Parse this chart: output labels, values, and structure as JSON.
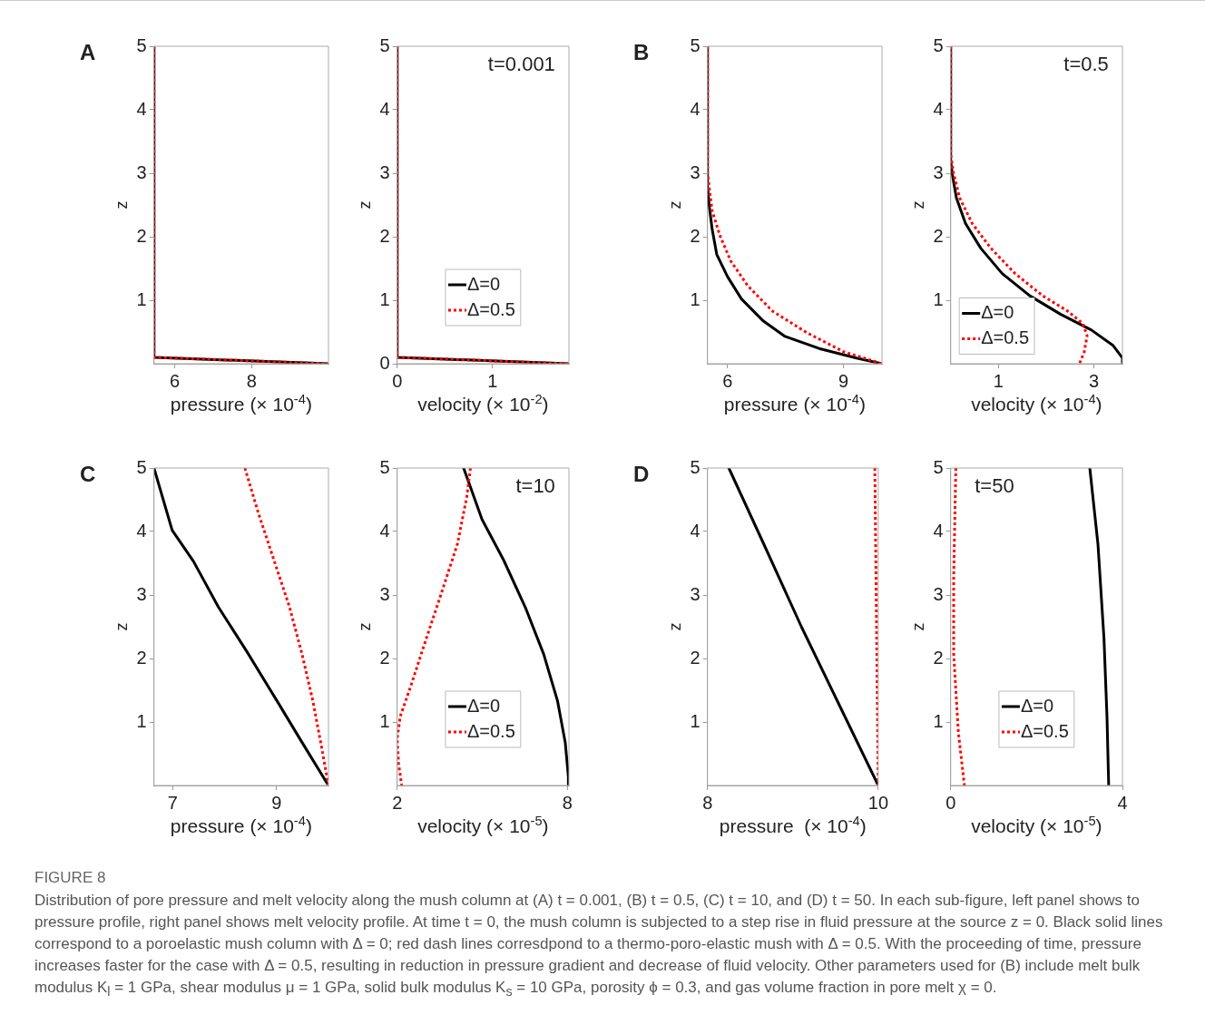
{
  "chart_data": [
    {
      "type": "line",
      "title": "A",
      "xlabel": "pressure (× 10$^{-4}$)",
      "ylabel": "z",
      "xlim": [
        5.46,
        10
      ],
      "xticks": [
        6,
        8
      ],
      "ylim": [
        0,
        5
      ],
      "yticks": [
        1,
        2,
        3,
        4,
        5
      ],
      "grid": false,
      "legend": false,
      "series": [
        {
          "color": "#000000",
          "line_style": "solid",
          "x": [
            5.46,
            5.46,
            10
          ],
          "values": [
            5,
            0.1,
            0
          ]
        },
        {
          "color": "#ff0000",
          "line_style": "dotted",
          "x": [
            5.46,
            5.46,
            10
          ],
          "values": [
            5,
            0.1,
            0
          ]
        }
      ]
    },
    {
      "type": "line",
      "xlabel": "velocity (× 10$^{-2}$)",
      "ylabel": "z",
      "xlim": [
        0,
        1.8
      ],
      "xticks": [
        0,
        1
      ],
      "ylim": [
        0,
        5
      ],
      "yticks": [
        0,
        1,
        2,
        3,
        4,
        5
      ],
      "grid": false,
      "legend": "bottom",
      "annotations": [
        "t=0.001"
      ],
      "series": [
        {
          "name": "Δ=0",
          "color": "#000000",
          "line_style": "solid",
          "x": [
            0,
            0,
            1.8
          ],
          "values": [
            5,
            0.1,
            0
          ]
        },
        {
          "name": "Δ=0.5",
          "color": "#ff0000",
          "line_style": "dotted",
          "x": [
            0,
            0,
            1.8
          ],
          "values": [
            5,
            0.1,
            0
          ]
        }
      ]
    },
    {
      "type": "line",
      "title": "B",
      "xlabel": "pressure (× 10$^{-4}$)",
      "ylabel": "z",
      "xlim": [
        5.48,
        10
      ],
      "xticks": [
        6,
        9
      ],
      "ylim": [
        0,
        5
      ],
      "yticks": [
        1,
        2,
        3,
        4,
        5
      ],
      "grid": false,
      "legend": false,
      "series": [
        {
          "color": "#000000",
          "line_style": "solid",
          "x": [
            5.48,
            5.48,
            5.52,
            5.6,
            5.72,
            6.0,
            6.36,
            6.93,
            7.49,
            8.37,
            9.34,
            10
          ],
          "values": [
            5,
            2.8,
            2.51,
            2.12,
            1.72,
            1.37,
            1.02,
            0.67,
            0.43,
            0.24,
            0.09,
            0
          ]
        },
        {
          "color": "#ff0000",
          "line_style": "dotted",
          "x": [
            5.48,
            5.48,
            5.52,
            5.6,
            5.8,
            6.08,
            6.52,
            7.16,
            8.05,
            9.0,
            10
          ],
          "values": [
            5,
            3.0,
            2.8,
            2.41,
            2.02,
            1.62,
            1.23,
            0.83,
            0.49,
            0.19,
            0
          ]
        }
      ]
    },
    {
      "type": "line",
      "xlabel": "velocity (× 10$^{-4}$)",
      "ylabel": "z",
      "xlim": [
        0,
        3.6
      ],
      "xticks": [
        1,
        3
      ],
      "ylim": [
        0,
        5
      ],
      "yticks": [
        1,
        2,
        3,
        4,
        5
      ],
      "grid": false,
      "legend": "bottom left",
      "annotations": [
        "t=0.5"
      ],
      "series": [
        {
          "name": "Δ=0",
          "color": "#000000",
          "line_style": "solid",
          "x": [
            0,
            0,
            0.03,
            0.12,
            0.31,
            0.63,
            1.08,
            1.66,
            2.3,
            2.95,
            3.4,
            3.6,
            3.6
          ],
          "values": [
            5,
            3.2,
            3.0,
            2.61,
            2.21,
            1.82,
            1.42,
            1.07,
            0.78,
            0.53,
            0.29,
            0.09,
            0
          ]
        },
        {
          "name": "Δ=0.5",
          "color": "#ff0000",
          "line_style": "dotted",
          "x": [
            0,
            0,
            0.06,
            0.19,
            0.45,
            0.84,
            1.35,
            1.93,
            2.45,
            2.77,
            2.86,
            2.8,
            2.7
          ],
          "values": [
            5,
            3.3,
            3.0,
            2.61,
            2.21,
            1.82,
            1.42,
            1.07,
            0.83,
            0.63,
            0.44,
            0.19,
            0
          ]
        }
      ]
    },
    {
      "type": "line",
      "title": "C",
      "xlabel": "pressure (× 10$^{-4}$)",
      "ylabel": "z",
      "xlim": [
        6.64,
        10
      ],
      "xticks": [
        7,
        9
      ],
      "ylim": [
        0,
        5
      ],
      "yticks": [
        1,
        2,
        3,
        4,
        5
      ],
      "grid": false,
      "legend": false,
      "series": [
        {
          "color": "#000000",
          "line_style": "solid",
          "x": [
            6.64,
            6.99,
            7.4,
            7.88,
            8.42,
            9.01,
            9.49,
            10
          ],
          "values": [
            5,
            4.02,
            3.53,
            2.81,
            2.12,
            1.33,
            0.68,
            0
          ]
        },
        {
          "color": "#ff0000",
          "line_style": "dotted",
          "x": [
            8.39,
            8.65,
            8.95,
            9.25,
            9.49,
            9.7,
            9.85,
            10
          ],
          "values": [
            5,
            4.29,
            3.55,
            2.81,
            2.07,
            1.33,
            0.68,
            0
          ]
        }
      ]
    },
    {
      "type": "line",
      "xlabel": "velocity (× 10$^{-5}$)",
      "ylabel": "z",
      "xlim": [
        2,
        8.05
      ],
      "xticks": [
        2,
        8
      ],
      "ylim": [
        0,
        5
      ],
      "yticks": [
        1,
        2,
        3,
        4,
        5
      ],
      "grid": false,
      "legend": "bottom",
      "annotations": [
        "t=10"
      ],
      "series": [
        {
          "name": "Δ=0",
          "color": "#000000",
          "line_style": "solid",
          "x": [
            4.34,
            4.99,
            5.75,
            6.51,
            7.16,
            7.65,
            7.92,
            8.03,
            8.03
          ],
          "values": [
            5,
            4.19,
            3.55,
            2.81,
            2.07,
            1.33,
            0.68,
            0.14,
            0
          ]
        },
        {
          "name": "Δ=0.5",
          "color": "#ff0000",
          "line_style": "dotted",
          "x": [
            4.58,
            4.45,
            4.12,
            3.58,
            3.03,
            2.49,
            2.11,
            2.0,
            2.05,
            2.16
          ],
          "values": [
            5,
            4.54,
            3.8,
            3.06,
            2.32,
            1.58,
            1.09,
            0.74,
            0.34,
            0
          ]
        }
      ]
    },
    {
      "type": "line",
      "title": "D",
      "xlabel": "pressure  (× 10$^{-4}$)",
      "ylabel": "z",
      "xlim": [
        8,
        10
      ],
      "xticks": [
        8,
        10
      ],
      "ylim": [
        0,
        5
      ],
      "yticks": [
        1,
        2,
        3,
        4,
        5
      ],
      "grid": false,
      "legend": false,
      "series": [
        {
          "color": "#000000",
          "line_style": "solid",
          "x": [
            8.25,
            8.66,
            9.1,
            9.55,
            10
          ],
          "values": [
            5,
            3.8,
            2.5,
            1.25,
            0
          ]
        },
        {
          "color": "#ff0000",
          "line_style": "dotted",
          "x": [
            9.96,
            9.98,
            10
          ],
          "values": [
            5,
            2.5,
            0
          ]
        }
      ]
    },
    {
      "type": "line",
      "xlabel": "velocity (× 10$^{-5}$)",
      "ylabel": "z",
      "xlim": [
        0,
        4
      ],
      "xticks": [
        0,
        4
      ],
      "ylim": [
        0,
        5
      ],
      "yticks": [
        1,
        2,
        3,
        4,
        5
      ],
      "grid": false,
      "legend": "bottom",
      "annotations": [
        "t=50"
      ],
      "series": [
        {
          "name": "Δ=0",
          "color": "#000000",
          "line_style": "solid",
          "x": [
            3.24,
            3.43,
            3.57,
            3.64,
            3.68
          ],
          "values": [
            5,
            3.8,
            2.32,
            1.09,
            0
          ]
        },
        {
          "name": "Δ=0.5",
          "color": "#ff0000",
          "line_style": "dotted",
          "x": [
            0.12,
            0.07,
            0.07,
            0.18,
            0.32
          ],
          "values": [
            5,
            3.3,
            2.07,
            0.83,
            0
          ]
        }
      ]
    },
    {
      "type": "other",
      "title": "FIGURE 8",
      "annotations": [
        "Distribution of pore pressure and melt velocity along the mush column at (A) t = 0.001, (B) t = 0.5, (C) t = 10, and (D) t = 50. In each sub-figure, left panel shows to pressure profile, right panel shows melt velocity profile. At time t = 0, the mush column is subjected to a step rise in fluid pressure at the source z = 0. Black solid lines correspond to a poroelastic mush column with Δ = 0; red dash lines corresdpond to a thermo-poro-elastic mush with Δ = 0.5. With the proceeding of time, pressure increases faster for the case with Δ = 0.5, resulting in reduction in pressure gradient and decrease of fluid velocity. Other parameters used for (B) include melt bulk modulus K$_{l}$ = 1 GPa, shear modulus μ = 1 GPa, solid bulk modulus K$_{s}$ = 10 GPa, porosity ϕ = 0.3, and gas volume fraction in pore melt χ = 0."
      ]
    }
  ]
}
